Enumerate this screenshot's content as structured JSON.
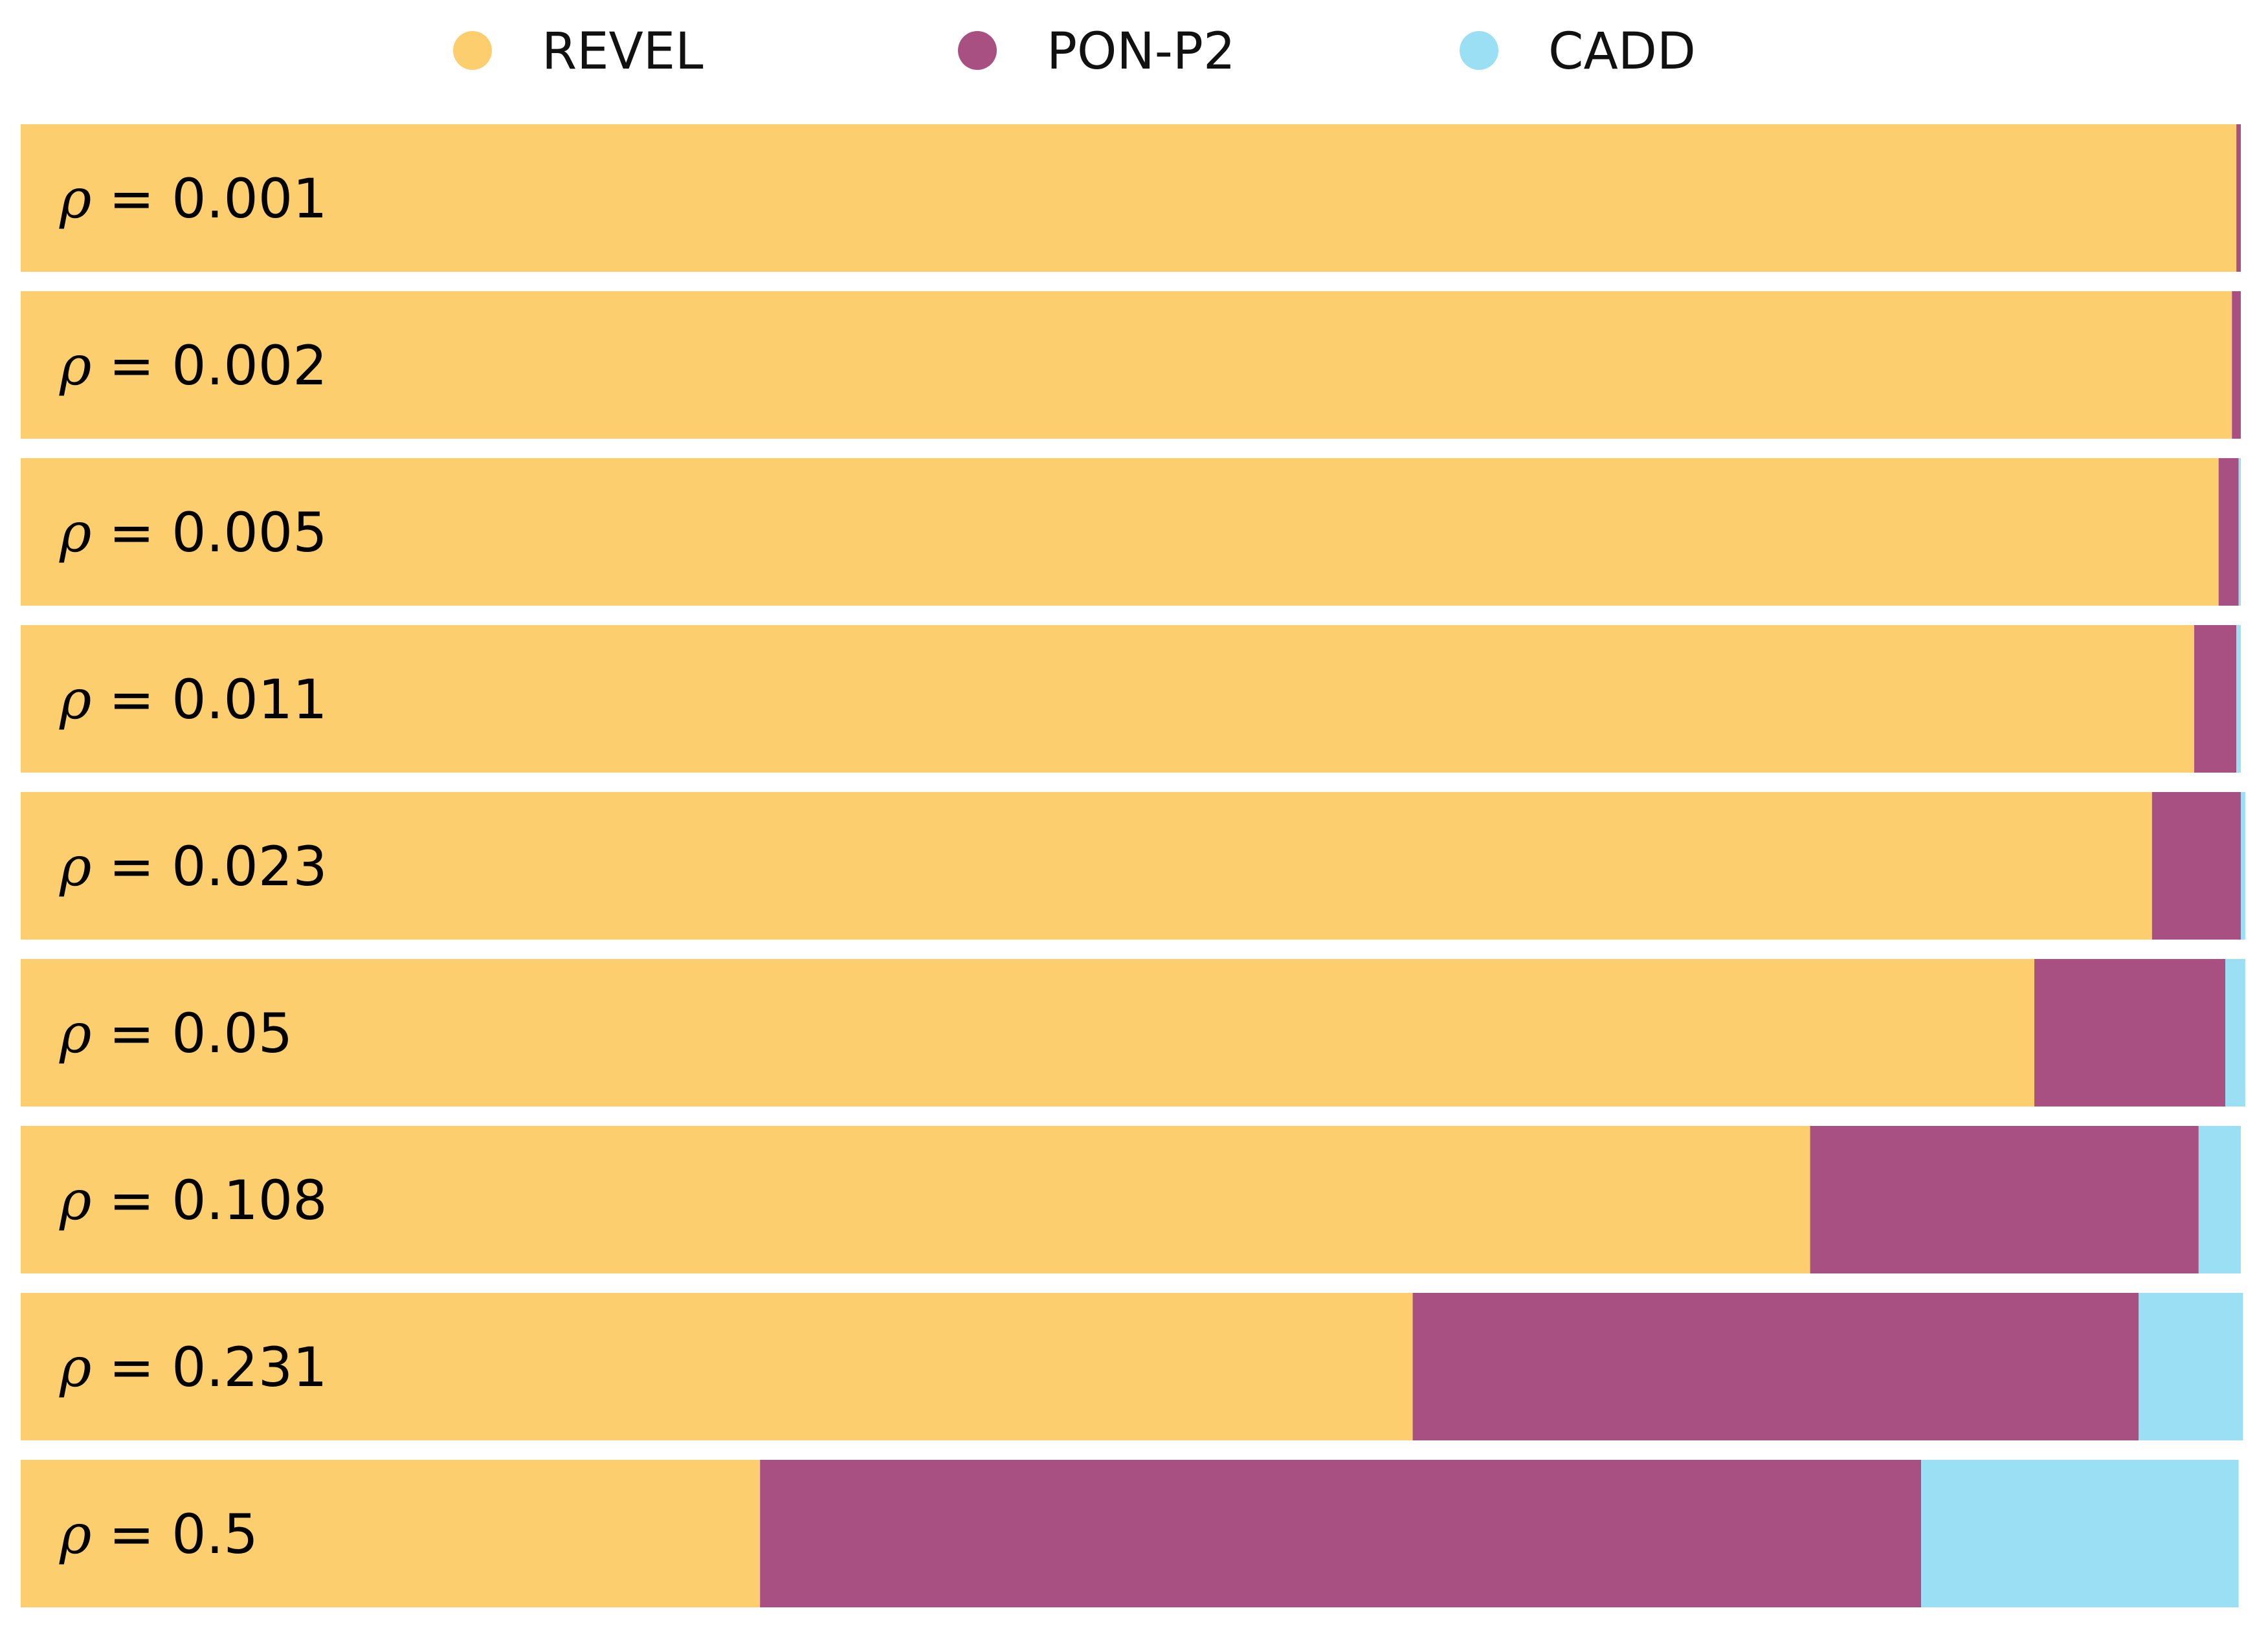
{
  "chart_data": {
    "type": "bar",
    "orientation": "horizontal",
    "stacked": true,
    "normalized": true,
    "title": "",
    "xlabel": "",
    "ylabel": "",
    "xlim": [
      0,
      1
    ],
    "grid": false,
    "legend_position": "top",
    "category_prefix": "ρ = ",
    "categories": [
      "0.001",
      "0.002",
      "0.005",
      "0.011",
      "0.023",
      "0.05",
      "0.108",
      "0.231",
      "0.5"
    ],
    "series": [
      {
        "name": "REVEL",
        "color": "#FDCE6D",
        "values": [
          0.998,
          0.996,
          0.99,
          0.979,
          0.96,
          0.907,
          0.806,
          0.627,
          0.333
        ]
      },
      {
        "name": "PON-P2",
        "color": "#A75081",
        "values": [
          0.002,
          0.004,
          0.009,
          0.019,
          0.04,
          0.086,
          0.175,
          0.327,
          0.523
        ]
      },
      {
        "name": "CADD",
        "color": "#9ADFF3",
        "values": [
          0.0,
          0.0,
          0.001,
          0.002,
          0.002,
          0.009,
          0.019,
          0.047,
          0.143
        ]
      }
    ]
  }
}
